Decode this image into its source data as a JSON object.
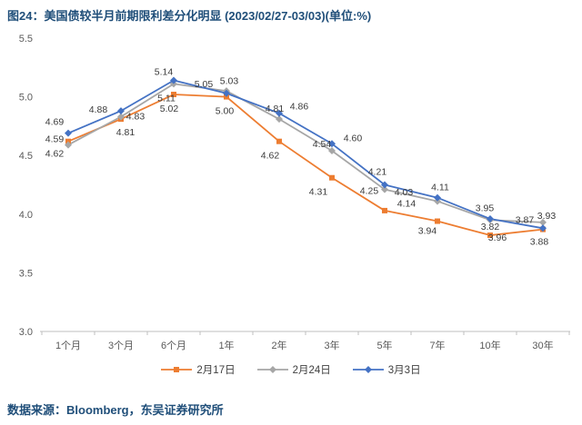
{
  "page": {
    "title": "图24：美国债较半月前期限利差分化明显 (2023/02/27-03/03)(单位:%)",
    "source_note": "数据来源：Bloomberg，东吴证券研究所"
  },
  "chart_data": {
    "type": "line",
    "title": "图24：美国债较半月前期限利差分化明显 (2023/02/27-03/03)(单位:%)",
    "categories": [
      "1个月",
      "3个月",
      "6个月",
      "1年",
      "2年",
      "3年",
      "5年",
      "7年",
      "10年",
      "30年"
    ],
    "series": [
      {
        "name": "2月17日",
        "color": "#ED7D31",
        "marker": "square",
        "values": [
          4.62,
          4.81,
          5.02,
          5.0,
          4.62,
          4.31,
          4.03,
          3.94,
          3.82,
          3.87
        ]
      },
      {
        "name": "2月24日",
        "color": "#A6A6A6",
        "marker": "diamond",
        "values": [
          4.59,
          4.83,
          5.11,
          5.05,
          4.81,
          4.54,
          4.21,
          4.11,
          3.95,
          3.93
        ]
      },
      {
        "name": "3月3日",
        "color": "#4472C4",
        "marker": "diamond",
        "values": [
          4.69,
          4.88,
          5.14,
          5.03,
          4.86,
          4.6,
          4.25,
          4.14,
          3.96,
          3.88
        ]
      }
    ],
    "xlabel": "",
    "ylabel": "",
    "ylim": [
      3.0,
      5.5
    ],
    "yticks": [
      3.0,
      3.5,
      4.0,
      4.5,
      5.0,
      5.5
    ],
    "ytick_labels": [
      "3.0",
      "3.5",
      "4.0",
      "4.5",
      "5.0",
      "5.5"
    ],
    "grid": false,
    "data_labels": true,
    "legend_position": "bottom",
    "axis_color": "#BFBFBF",
    "axis_text_color": "#595959",
    "label_text_color": "#3B3B3B"
  }
}
